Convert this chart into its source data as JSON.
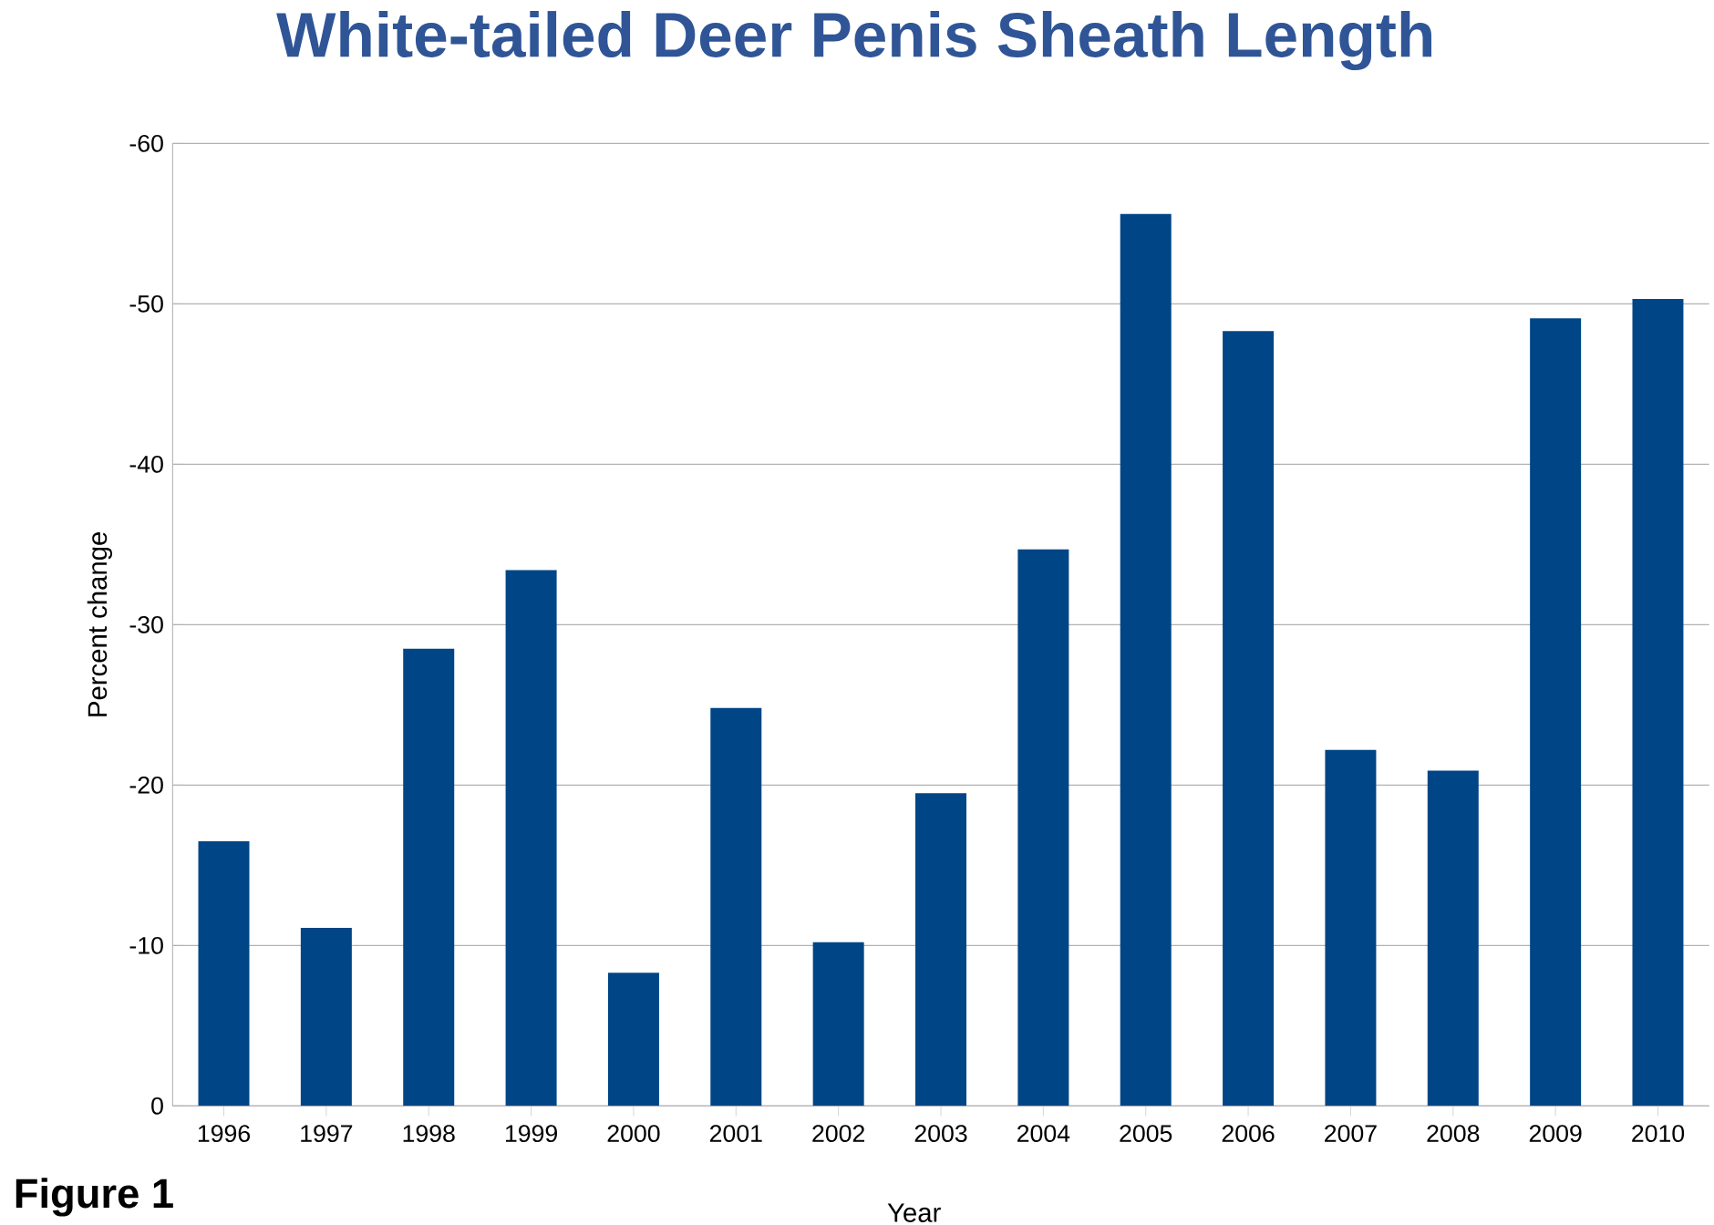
{
  "chart_data": {
    "type": "bar",
    "title": "White-tailed Deer Penis Sheath Length",
    "xlabel": "Year",
    "ylabel": "Percent change",
    "categories": [
      "1996",
      "1997",
      "1998",
      "1999",
      "2000",
      "2001",
      "2002",
      "2003",
      "2004",
      "2005",
      "2006",
      "2007",
      "2008",
      "2009",
      "2010"
    ],
    "values": [
      -16.5,
      -11.1,
      -28.5,
      -33.4,
      -8.3,
      -24.8,
      -10.2,
      -19.5,
      -34.7,
      -55.6,
      -48.3,
      -22.2,
      -20.9,
      -49.1,
      -50.3
    ],
    "color": "#004586",
    "ylim": [
      0,
      -60
    ],
    "yticks": [
      0,
      -10,
      -20,
      -30,
      -40,
      -50,
      -60
    ],
    "grid": "y",
    "annotations": [
      "Figure 1"
    ]
  }
}
